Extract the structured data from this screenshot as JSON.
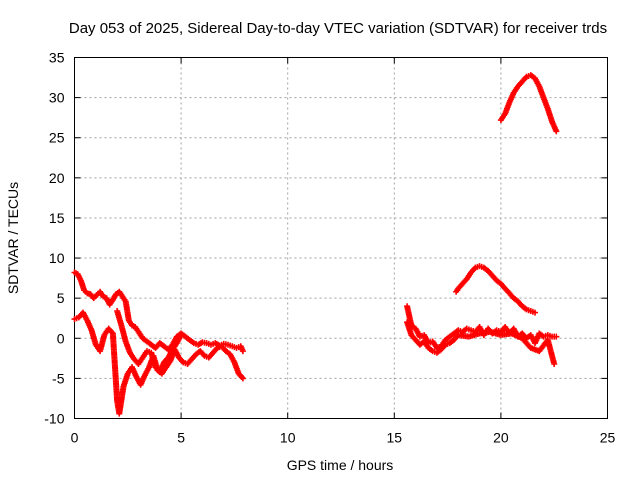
{
  "chart_data": {
    "type": "scatter",
    "title": "Day 053 of 2025, Sidereal Day-to-day VTEC variation (SDTVAR) for receiver trds",
    "xlabel": "GPS time / hours",
    "ylabel": "SDTVAR / TECUs",
    "xlim": [
      0,
      25
    ],
    "ylim": [
      -10,
      35
    ],
    "xticks": [
      0,
      5,
      10,
      15,
      20,
      25
    ],
    "yticks": [
      -10,
      -5,
      0,
      5,
      10,
      15,
      20,
      25,
      30,
      35
    ],
    "xtick_labels": [
      "0",
      "5",
      "10",
      "15",
      "20",
      "25"
    ],
    "ytick_labels": [
      "-10",
      "-5",
      "0",
      "5",
      "10",
      "15",
      "20",
      "25",
      "30",
      "35"
    ],
    "grid": true,
    "marker": "+",
    "marker_color": "#ff0000",
    "series": [
      {
        "name": "early-arc-upper",
        "x": [
          0.0,
          0.15,
          0.3,
          0.45,
          0.6,
          0.75,
          0.9,
          1.05,
          1.2,
          1.35,
          1.5,
          1.65,
          1.8,
          1.95,
          2.1,
          2.25,
          2.4,
          2.55,
          2.7,
          2.85,
          3.0,
          3.2,
          3.4,
          3.6,
          3.8,
          4.0,
          4.2,
          4.4,
          4.6,
          4.8,
          5.0,
          5.2,
          5.4,
          5.6,
          5.8,
          6.0,
          6.2,
          6.4,
          6.6,
          6.8,
          7.0,
          7.2,
          7.4,
          7.6,
          7.8,
          7.9
        ],
        "y": [
          8.2,
          8.0,
          7.2,
          6.0,
          5.6,
          5.5,
          5.0,
          5.4,
          5.8,
          5.2,
          5.0,
          4.2,
          4.8,
          5.5,
          5.8,
          5.2,
          4.6,
          2.2,
          1.6,
          1.4,
          0.8,
          0.0,
          -0.4,
          -0.8,
          -1.2,
          -0.6,
          -1.0,
          -1.4,
          -0.8,
          0.2,
          0.6,
          0.2,
          -0.2,
          -0.6,
          -0.8,
          -0.5,
          -0.6,
          -0.8,
          -0.6,
          -0.9,
          -0.7,
          -0.8,
          -1.0,
          -1.2,
          -1.0,
          -1.6
        ]
      },
      {
        "name": "early-arc-lower",
        "x": [
          0.0,
          0.2,
          0.4,
          0.6,
          0.8,
          1.0,
          1.2,
          1.4,
          1.6,
          1.8,
          2.0,
          2.1,
          2.3,
          2.5,
          2.7,
          2.9,
          3.1,
          3.3,
          3.5,
          3.7,
          3.9,
          4.1,
          4.3,
          4.5,
          4.7,
          4.9,
          5.1,
          5.3,
          5.5,
          5.7,
          5.9,
          6.1,
          6.3,
          6.5,
          6.7,
          6.9,
          7.1,
          7.3,
          7.5,
          7.7,
          7.9
        ],
        "y": [
          2.4,
          2.6,
          3.2,
          2.2,
          1.0,
          -0.8,
          -1.6,
          0.4,
          1.2,
          0.6,
          -7.8,
          -9.4,
          -6.0,
          -4.4,
          -3.6,
          -4.8,
          -5.8,
          -4.6,
          -3.6,
          -2.2,
          -4.0,
          -4.4,
          -3.6,
          -2.8,
          -1.4,
          -2.4,
          -3.0,
          -3.2,
          -2.6,
          -2.0,
          -1.6,
          -2.2,
          -2.4,
          -1.8,
          -1.2,
          -1.0,
          -1.6,
          -2.0,
          -3.0,
          -4.4,
          -5.0
        ]
      },
      {
        "name": "mid-day-arc",
        "x": [
          2.0,
          2.2,
          2.4,
          2.6,
          2.8,
          3.0,
          3.2,
          3.4,
          3.6,
          3.8,
          4.0,
          4.2,
          4.4,
          4.6,
          4.8,
          5.0
        ],
        "y": [
          3.4,
          1.6,
          -0.4,
          -1.8,
          -2.6,
          -3.2,
          -2.4,
          -1.6,
          -1.8,
          -3.6,
          -4.2,
          -3.0,
          -2.4,
          -1.4,
          -0.6,
          0.4
        ]
      },
      {
        "name": "late-arc-low",
        "x": [
          15.6,
          15.8,
          16.0,
          16.2,
          16.4,
          16.6,
          16.8,
          17.0,
          17.2,
          17.4,
          17.6,
          17.8,
          18.0,
          18.2,
          18.4,
          18.6,
          18.8,
          19.0,
          19.2,
          19.4,
          19.6,
          19.8,
          20.0,
          20.2,
          20.4,
          20.6,
          20.8,
          21.0,
          21.2,
          21.4,
          21.6,
          21.8,
          22.0,
          22.2,
          22.4,
          22.6
        ],
        "y": [
          4.0,
          1.6,
          1.2,
          0.2,
          0.4,
          -0.6,
          -0.4,
          -1.2,
          -1.0,
          -0.2,
          0.2,
          0.6,
          1.0,
          0.8,
          1.2,
          1.0,
          0.8,
          1.4,
          0.4,
          1.2,
          0.6,
          1.0,
          0.8,
          1.4,
          0.6,
          1.2,
          0.2,
          0.6,
          0.0,
          0.4,
          -0.6,
          0.6,
          0.2,
          0.4,
          0.2,
          0.2
        ]
      },
      {
        "name": "late-arc-low-b",
        "x": [
          15.6,
          15.8,
          16.0,
          16.2,
          16.4,
          16.6,
          16.8,
          17.0,
          17.2,
          17.4,
          17.6,
          17.8,
          18.0,
          18.5,
          19.0,
          19.5,
          20.0,
          20.5,
          21.0,
          21.4,
          21.8,
          22.2,
          22.5
        ],
        "y": [
          2.0,
          0.4,
          -0.2,
          -0.8,
          -0.4,
          -1.2,
          -1.6,
          -1.8,
          -1.4,
          -0.8,
          -0.6,
          -0.2,
          0.4,
          0.2,
          0.6,
          0.8,
          0.4,
          0.6,
          0.0,
          -1.2,
          -1.6,
          -0.2,
          -3.2
        ]
      },
      {
        "name": "late-arc-mid",
        "x": [
          17.9,
          18.0,
          18.2,
          18.4,
          18.6,
          18.8,
          19.0,
          19.2,
          19.4,
          19.6,
          19.8,
          20.0,
          20.2,
          20.4,
          20.6,
          20.8,
          21.0,
          21.2,
          21.4,
          21.6
        ],
        "y": [
          5.8,
          6.2,
          6.8,
          7.4,
          8.2,
          8.8,
          9.0,
          8.8,
          8.4,
          7.8,
          7.2,
          6.8,
          6.2,
          5.6,
          5.0,
          4.6,
          4.0,
          3.6,
          3.4,
          3.2
        ]
      },
      {
        "name": "late-arc-high",
        "x": [
          20.0,
          20.2,
          20.4,
          20.6,
          20.8,
          21.0,
          21.2,
          21.4,
          21.6,
          21.8,
          22.0,
          22.2,
          22.4,
          22.6
        ],
        "y": [
          27.2,
          28.0,
          29.4,
          30.6,
          31.4,
          32.0,
          32.6,
          32.8,
          32.4,
          31.4,
          30.0,
          28.6,
          27.0,
          25.8
        ]
      }
    ]
  }
}
